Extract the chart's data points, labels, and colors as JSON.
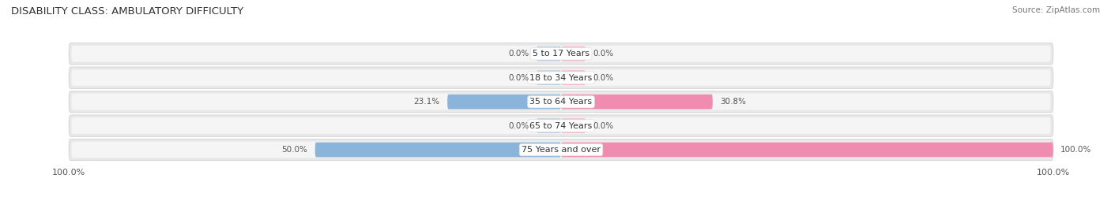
{
  "title": "DISABILITY CLASS: AMBULATORY DIFFICULTY",
  "source": "Source: ZipAtlas.com",
  "categories": [
    "5 to 17 Years",
    "18 to 34 Years",
    "35 to 64 Years",
    "65 to 74 Years",
    "75 Years and over"
  ],
  "male_values": [
    0.0,
    0.0,
    23.1,
    0.0,
    50.0
  ],
  "female_values": [
    0.0,
    0.0,
    30.8,
    0.0,
    100.0
  ],
  "male_color": "#8ab4d9",
  "female_color": "#f08caf",
  "male_stub_color": "#b8d0e8",
  "female_stub_color": "#f5b8ce",
  "row_bg_color": "#e8e8e8",
  "row_inner_color": "#f5f5f5",
  "max_value": 100.0,
  "title_fontsize": 9.5,
  "label_fontsize": 8.0,
  "value_fontsize": 7.5,
  "tick_fontsize": 8.0,
  "source_fontsize": 7.5,
  "stub_pct": 5.0
}
